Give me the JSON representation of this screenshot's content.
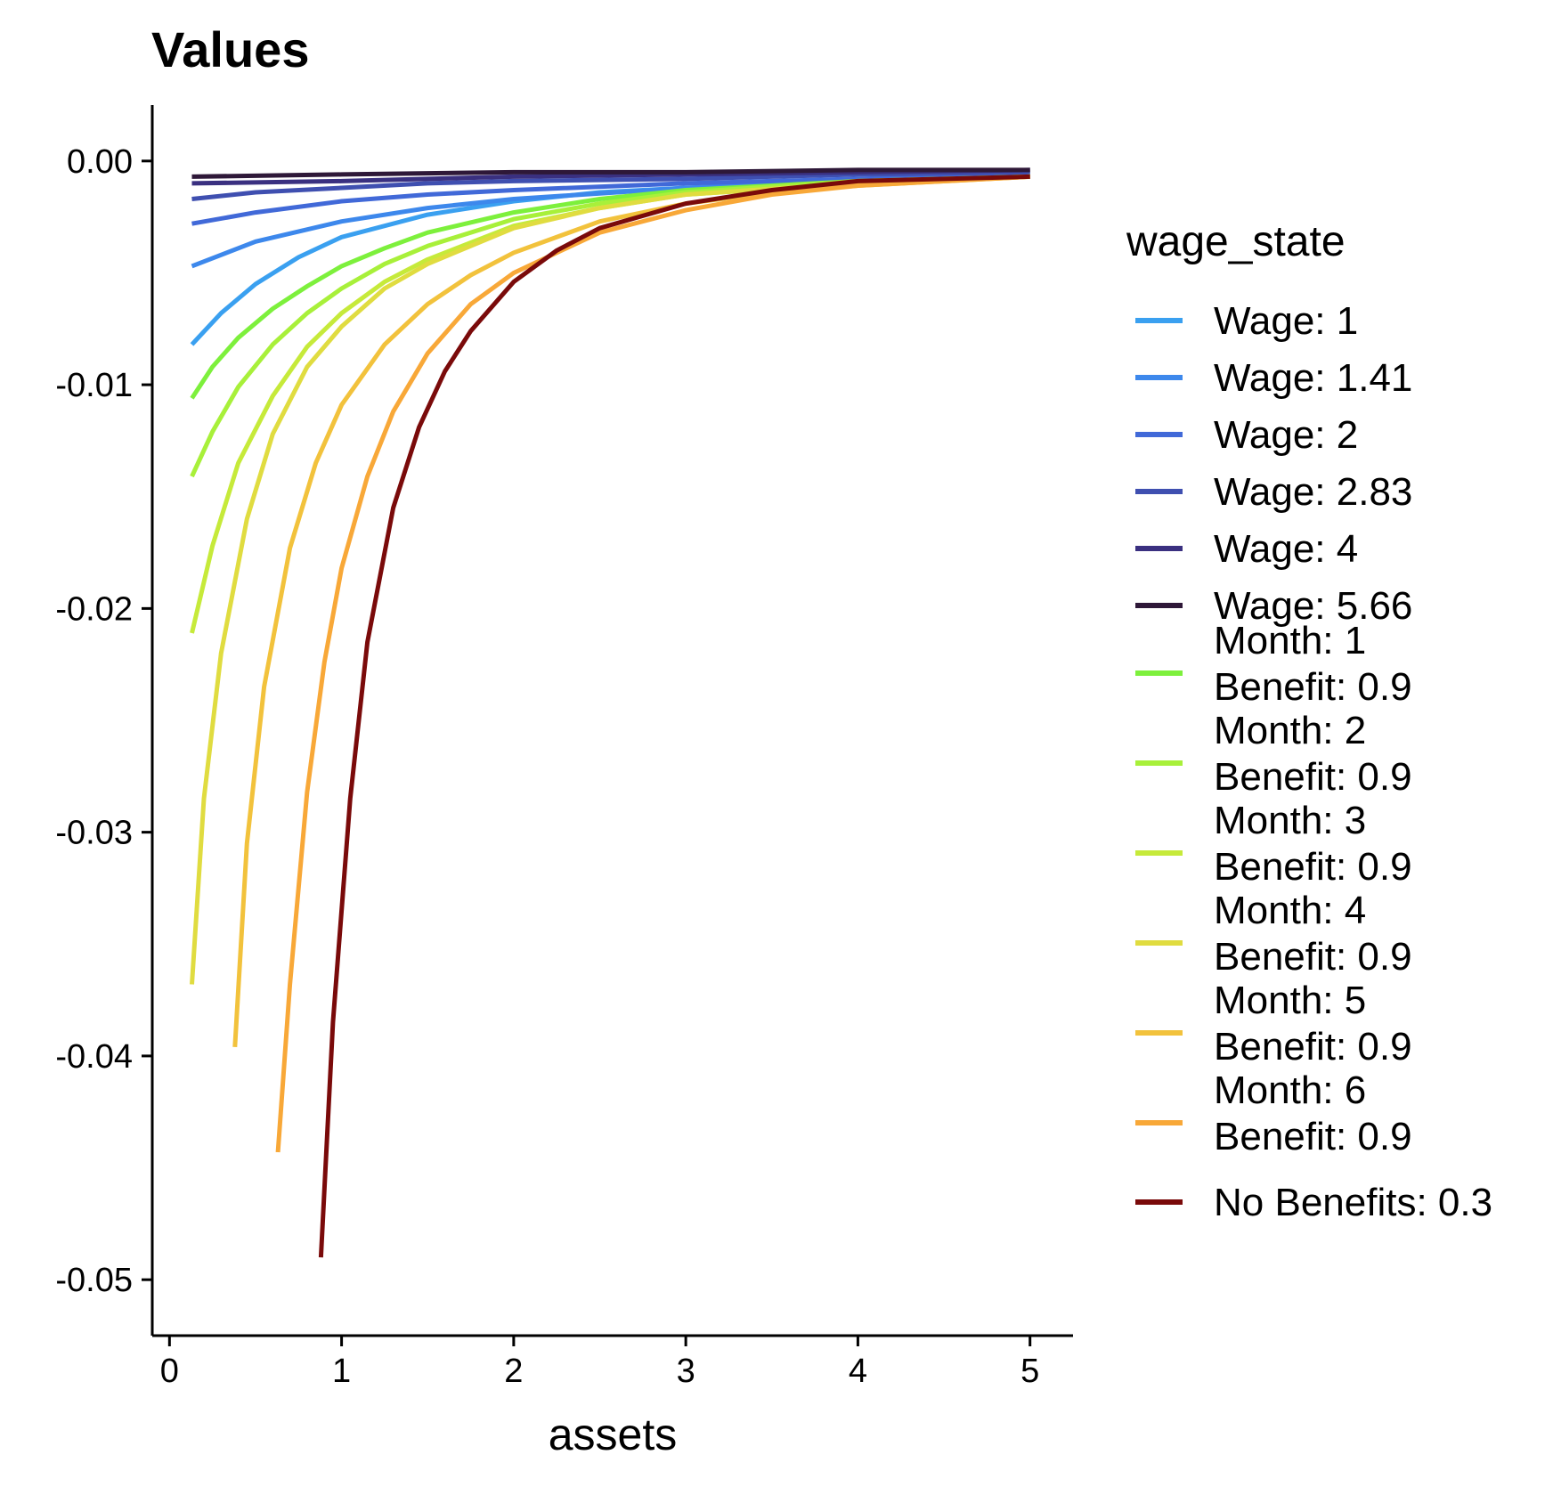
{
  "chart_data": {
    "type": "line",
    "title": "Values",
    "xlabel": "assets",
    "ylabel": "",
    "xlim": [
      -0.1,
      5.25
    ],
    "ylim": [
      -0.0525,
      0.0025
    ],
    "xticks": [
      0,
      1,
      2,
      3,
      4,
      5
    ],
    "xtick_labels": [
      "0",
      "1",
      "2",
      "3",
      "4",
      "5"
    ],
    "yticks": [
      0,
      -0.01,
      -0.02,
      -0.03,
      -0.04,
      -0.05
    ],
    "ytick_labels": [
      "0.00",
      "-0.01",
      "-0.02",
      "-0.03",
      "-0.04",
      "-0.05"
    ],
    "grid": false,
    "legend": {
      "title": "wage_state",
      "position": "right"
    },
    "series": [
      {
        "name": "Wage: 1",
        "color": "#3aa0f0",
        "x": [
          0.13,
          0.3,
          0.5,
          0.75,
          1.0,
          1.5,
          2.0,
          2.5,
          3.0,
          4.0,
          5.0
        ],
        "y": [
          -0.0082,
          -0.0068,
          -0.0055,
          -0.0043,
          -0.0034,
          -0.0024,
          -0.0018,
          -0.0014,
          -0.0012,
          -0.0009,
          -0.0007
        ]
      },
      {
        "name": "Wage: 1.41",
        "color": "#3d88ec",
        "x": [
          0.13,
          0.5,
          1.0,
          1.5,
          2.0,
          3.0,
          4.0,
          5.0
        ],
        "y": [
          -0.0047,
          -0.0036,
          -0.0027,
          -0.0021,
          -0.0017,
          -0.0012,
          -0.0009,
          -0.0007
        ]
      },
      {
        "name": "Wage: 2",
        "color": "#4169d8",
        "x": [
          0.13,
          0.5,
          1.0,
          1.5,
          2.0,
          3.0,
          4.0,
          5.0
        ],
        "y": [
          -0.0028,
          -0.0023,
          -0.0018,
          -0.0015,
          -0.0013,
          -0.001,
          -0.0008,
          -0.0006
        ]
      },
      {
        "name": "Wage: 2.83",
        "color": "#3f4fb0",
        "x": [
          0.13,
          0.5,
          1.0,
          1.5,
          2.0,
          3.0,
          4.0,
          5.0
        ],
        "y": [
          -0.0017,
          -0.0014,
          -0.0012,
          -0.001,
          -0.0009,
          -0.0008,
          -0.0006,
          -0.0005
        ]
      },
      {
        "name": "Wage: 4",
        "color": "#3a3080",
        "x": [
          0.13,
          1.0,
          2.0,
          3.0,
          4.0,
          5.0
        ],
        "y": [
          -0.001,
          -0.0009,
          -0.0007,
          -0.0006,
          -0.0005,
          -0.0004
        ]
      },
      {
        "name": "Wage: 5.66",
        "color": "#2e1838",
        "x": [
          0.13,
          1.0,
          2.0,
          3.0,
          4.0,
          5.0
        ],
        "y": [
          -0.0007,
          -0.0006,
          -0.0005,
          -0.0005,
          -0.0004,
          -0.0004
        ]
      },
      {
        "name": "Month: 1\nBenefit: 0.9",
        "color": "#7df03c",
        "x": [
          0.13,
          0.25,
          0.4,
          0.6,
          0.8,
          1.0,
          1.25,
          1.5,
          2.0,
          2.5,
          3.0,
          4.0,
          5.0
        ],
        "y": [
          -0.0106,
          -0.0092,
          -0.0079,
          -0.0066,
          -0.0056,
          -0.0047,
          -0.0039,
          -0.0032,
          -0.0023,
          -0.0017,
          -0.0013,
          -0.0009,
          -0.0007
        ]
      },
      {
        "name": "Month: 2\nBenefit: 0.9",
        "color": "#a8f03a",
        "x": [
          0.13,
          0.25,
          0.4,
          0.6,
          0.8,
          1.0,
          1.25,
          1.5,
          2.0,
          2.5,
          3.0,
          4.0,
          5.0
        ],
        "y": [
          -0.0141,
          -0.0121,
          -0.0101,
          -0.0082,
          -0.0068,
          -0.0057,
          -0.0046,
          -0.0038,
          -0.0026,
          -0.0019,
          -0.0014,
          -0.0009,
          -0.0007
        ]
      },
      {
        "name": "Month: 3\nBenefit: 0.9",
        "color": "#c6ea3a",
        "x": [
          0.13,
          0.25,
          0.4,
          0.6,
          0.8,
          1.0,
          1.25,
          1.5,
          2.0,
          2.5,
          3.0,
          4.0,
          5.0
        ],
        "y": [
          -0.0211,
          -0.0172,
          -0.0135,
          -0.0105,
          -0.0083,
          -0.0068,
          -0.0054,
          -0.0044,
          -0.0029,
          -0.0021,
          -0.0015,
          -0.001,
          -0.0007
        ]
      },
      {
        "name": "Month: 4\nBenefit: 0.9",
        "color": "#e0dc40",
        "x": [
          0.13,
          0.2,
          0.3,
          0.45,
          0.6,
          0.8,
          1.0,
          1.25,
          1.5,
          2.0,
          2.5,
          3.0,
          4.0,
          5.0
        ],
        "y": [
          -0.0368,
          -0.0285,
          -0.022,
          -0.016,
          -0.0122,
          -0.0092,
          -0.0074,
          -0.0057,
          -0.0046,
          -0.003,
          -0.0021,
          -0.0015,
          -0.001,
          -0.0007
        ]
      },
      {
        "name": "Month: 5\nBenefit: 0.9",
        "color": "#f2c23c",
        "x": [
          0.38,
          0.45,
          0.55,
          0.7,
          0.85,
          1.0,
          1.25,
          1.5,
          1.75,
          2.0,
          2.5,
          3.0,
          3.5,
          4.0,
          5.0
        ],
        "y": [
          -0.0396,
          -0.0305,
          -0.0235,
          -0.0173,
          -0.0135,
          -0.0109,
          -0.0082,
          -0.0064,
          -0.0051,
          -0.0041,
          -0.0027,
          -0.0019,
          -0.0014,
          -0.0011,
          -0.0007
        ]
      },
      {
        "name": "Month: 6\nBenefit: 0.9",
        "color": "#f8a838",
        "x": [
          0.63,
          0.7,
          0.8,
          0.9,
          1.0,
          1.15,
          1.3,
          1.5,
          1.75,
          2.0,
          2.5,
          3.0,
          3.5,
          4.0,
          5.0
        ],
        "y": [
          -0.0443,
          -0.0368,
          -0.0282,
          -0.0224,
          -0.0182,
          -0.0141,
          -0.0112,
          -0.0086,
          -0.0064,
          -0.005,
          -0.0032,
          -0.0022,
          -0.0015,
          -0.0011,
          -0.0007
        ]
      },
      {
        "name": "No Benefits: 0.3",
        "color": "#7a0a0a",
        "x": [
          0.88,
          0.95,
          1.05,
          1.15,
          1.3,
          1.45,
          1.6,
          1.75,
          2.0,
          2.25,
          2.5,
          3.0,
          3.5,
          4.0,
          4.5,
          5.0
        ],
        "y": [
          -0.049,
          -0.0385,
          -0.0285,
          -0.0215,
          -0.0155,
          -0.0119,
          -0.0094,
          -0.0076,
          -0.0054,
          -0.004,
          -0.003,
          -0.0019,
          -0.0013,
          -0.0009,
          -0.0008,
          -0.0007
        ]
      }
    ]
  }
}
